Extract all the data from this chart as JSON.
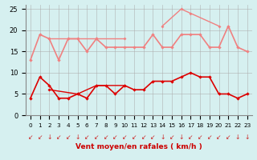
{
  "title": "",
  "xlabel": "Vent moyen/en rafales ( km/h )",
  "background_color": "#d6f0f0",
  "grid_color": "#aaaaaa",
  "x_hours": [
    0,
    1,
    2,
    3,
    4,
    5,
    6,
    7,
    8,
    9,
    10,
    11,
    12,
    13,
    14,
    15,
    16,
    17,
    18,
    19,
    20,
    21,
    22,
    23
  ],
  "ylim": [
    0,
    26
  ],
  "yticks": [
    0,
    5,
    10,
    15,
    20,
    25
  ],
  "lines_light": [
    [
      13,
      19,
      18,
      13,
      18,
      18,
      15,
      18,
      16,
      16,
      16,
      16,
      16,
      19,
      16,
      16,
      19,
      19,
      19,
      16,
      16,
      21,
      16,
      15
    ],
    [
      null,
      null,
      18,
      null,
      null,
      null,
      null,
      18,
      null,
      null,
      18,
      null,
      null,
      null,
      null,
      null,
      null,
      null,
      null,
      null,
      null,
      null,
      null,
      null
    ],
    [
      null,
      null,
      null,
      null,
      null,
      null,
      null,
      null,
      null,
      null,
      null,
      null,
      null,
      null,
      21,
      null,
      25,
      24,
      null,
      null,
      21,
      null,
      null,
      null
    ]
  ],
  "lines_dark": [
    [
      4,
      9,
      7,
      4,
      4,
      5,
      4,
      7,
      7,
      5,
      7,
      6,
      6,
      8,
      8,
      8,
      9,
      10,
      9,
      9,
      5,
      5,
      4,
      5
    ],
    [
      null,
      null,
      6,
      null,
      null,
      5,
      null,
      7,
      null,
      null,
      7,
      null,
      null,
      null,
      null,
      null,
      null,
      null,
      null,
      null,
      null,
      null,
      null,
      null
    ],
    [
      null,
      null,
      null,
      null,
      null,
      null,
      null,
      null,
      null,
      null,
      null,
      null,
      null,
      null,
      null,
      null,
      null,
      null,
      null,
      null,
      null,
      null,
      null,
      null
    ]
  ],
  "color_light": "#f08080",
  "color_dark": "#dd0000",
  "arrow_chars": [
    "↙",
    "↙",
    "↓",
    "↙",
    "↙",
    "↓",
    "↙",
    "↙",
    "↙",
    "↙",
    "↙",
    "↙",
    "↙",
    "↙",
    "↓",
    "↙",
    "↓",
    "↙",
    "↙",
    "↙",
    "↙",
    "↙",
    "↓",
    "↓"
  ]
}
